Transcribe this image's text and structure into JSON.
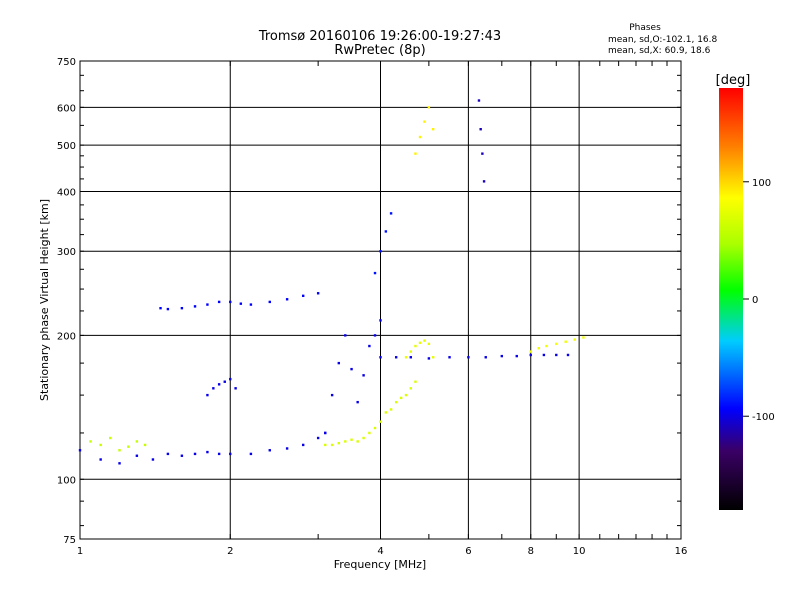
{
  "chart_data": {
    "type": "scatter",
    "title": "Tromsø 20160106 19:26:00-19:27:43",
    "subtitle": "RwPretec (8p)",
    "xlabel": "Frequency [MHz]",
    "ylabel": "Stationary phase Virtual Height [km]",
    "x_scale": "log",
    "y_scale": "log",
    "xlim": [
      1,
      16
    ],
    "ylim": [
      75,
      750
    ],
    "x_ticks": [
      1,
      2,
      4,
      6,
      8,
      10,
      16
    ],
    "y_ticks": [
      75,
      100,
      200,
      300,
      400,
      500,
      600,
      750
    ],
    "grid": true,
    "legend": {
      "title": "Phases",
      "line1": "mean, sd,O:-102.1, 16.8",
      "line2": "mean, sd,X:  60.9, 18.6"
    },
    "colorbar": {
      "label": "[deg]",
      "range": [
        -180,
        180
      ],
      "ticks": [
        100,
        0,
        -100
      ],
      "tick_labels": [
        "100",
        "0",
        "-100"
      ]
    },
    "traces": [
      {
        "mode": "O",
        "phase": -100,
        "x": [
          1.0,
          1.1,
          1.2,
          1.3,
          1.4,
          1.5,
          1.6,
          1.7,
          1.8,
          1.9,
          2.0,
          2.2,
          2.4,
          2.6,
          2.8,
          3.0,
          3.1
        ],
        "y": [
          115,
          110,
          108,
          112,
          110,
          113,
          112,
          113,
          114,
          113,
          113,
          113,
          115,
          116,
          118,
          122,
          125
        ]
      },
      {
        "mode": "O",
        "phase": -100,
        "x": [
          3.1,
          3.2,
          3.3,
          3.4,
          3.5,
          3.6,
          3.7,
          3.8,
          3.9,
          4.0
        ],
        "y": [
          125,
          150,
          175,
          200,
          170,
          145,
          165,
          190,
          200,
          215
        ]
      },
      {
        "mode": "O",
        "phase": -100,
        "x": [
          4.0,
          4.3,
          4.6,
          5.0,
          5.5,
          6.0,
          6.5,
          7.0,
          7.5,
          8.0,
          8.5,
          9.0,
          9.5
        ],
        "y": [
          180,
          180,
          180,
          179,
          180,
          180,
          180,
          181,
          181,
          182,
          182,
          182,
          182
        ]
      },
      {
        "mode": "O",
        "phase": -95,
        "x": [
          1.45,
          1.5,
          1.6,
          1.7,
          1.8,
          1.9,
          2.0,
          2.1,
          2.2,
          2.4,
          2.6,
          2.8,
          3.0
        ],
        "y": [
          228,
          227,
          228,
          230,
          232,
          235,
          235,
          233,
          232,
          235,
          238,
          242,
          245
        ]
      },
      {
        "mode": "O",
        "phase": -100,
        "x": [
          1.8,
          1.85,
          1.9,
          1.95,
          2.0,
          2.05
        ],
        "y": [
          150,
          155,
          158,
          160,
          162,
          155
        ]
      },
      {
        "mode": "X",
        "phase": 60,
        "x": [
          1.05,
          1.1,
          1.15,
          1.2,
          1.25,
          1.3,
          1.35
        ],
        "y": [
          120,
          118,
          122,
          115,
          117,
          120,
          118
        ]
      },
      {
        "mode": "X",
        "phase": 70,
        "x": [
          3.1,
          3.2,
          3.3,
          3.4,
          3.5,
          3.6,
          3.7,
          3.8,
          3.9,
          4.0,
          4.1,
          4.2,
          4.3,
          4.4,
          4.5,
          4.6,
          4.7
        ],
        "y": [
          118,
          118,
          119,
          120,
          121,
          120,
          122,
          125,
          128,
          132,
          138,
          140,
          145,
          148,
          150,
          155,
          160
        ]
      },
      {
        "mode": "X",
        "phase": 75,
        "x": [
          4.5,
          4.6,
          4.7,
          4.8,
          4.9,
          5.0,
          5.1
        ],
        "y": [
          180,
          185,
          190,
          193,
          195,
          192,
          180
        ]
      },
      {
        "mode": "X",
        "phase": 80,
        "x": [
          8.0,
          8.3,
          8.6,
          9.0,
          9.4,
          9.8,
          10.2
        ],
        "y": [
          185,
          188,
          190,
          192,
          194,
          196,
          198
        ]
      },
      {
        "mode": "X",
        "phase": 90,
        "x": [
          4.7,
          4.8,
          4.9,
          5.0,
          5.1
        ],
        "y": [
          480,
          520,
          560,
          600,
          540
        ]
      },
      {
        "mode": "O",
        "phase": -110,
        "x": [
          6.3,
          6.35,
          6.4,
          6.45
        ],
        "y": [
          620,
          540,
          480,
          420
        ]
      },
      {
        "mode": "O",
        "phase": -90,
        "x": [
          3.9,
          4.0,
          4.1,
          4.2
        ],
        "y": [
          270,
          300,
          330,
          360
        ]
      }
    ]
  }
}
